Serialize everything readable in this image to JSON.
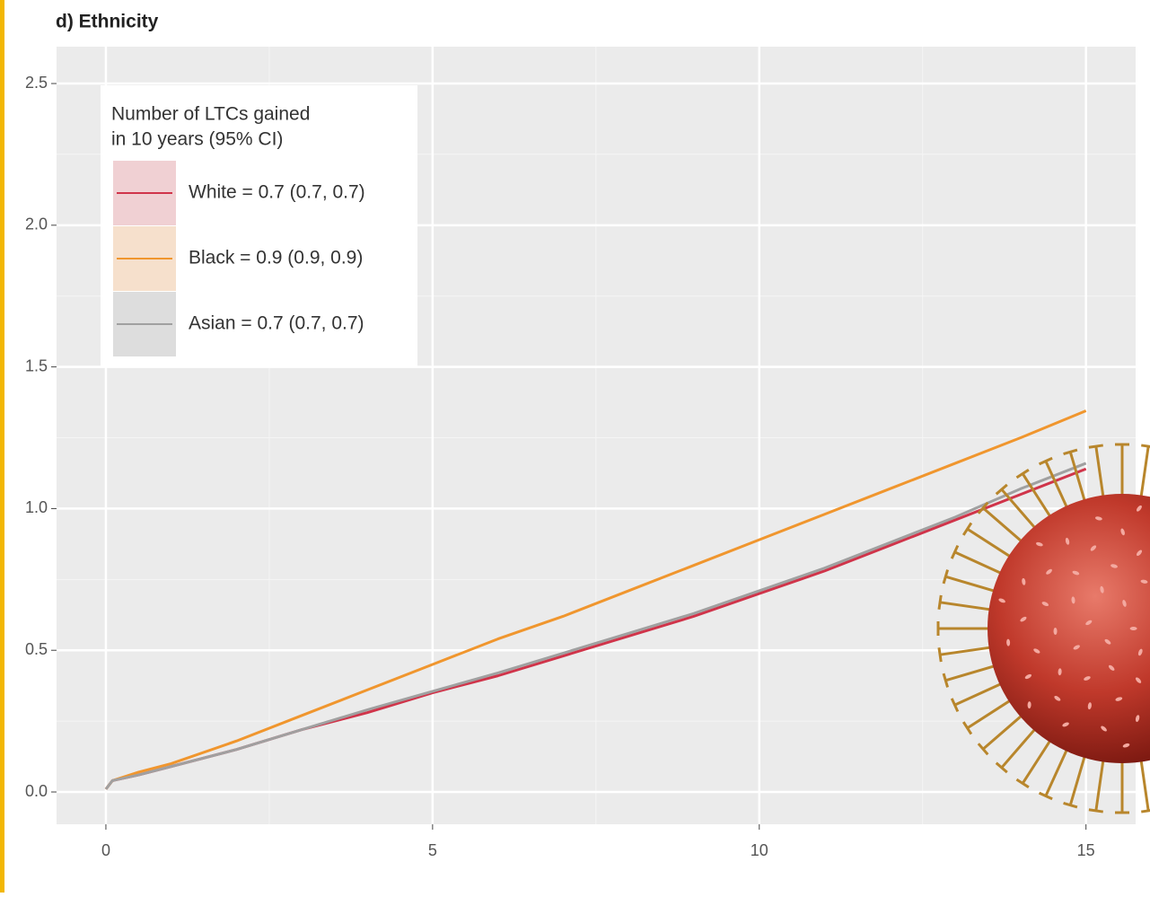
{
  "chart_data": {
    "type": "line",
    "title": "d) Ethnicity",
    "legend_title": [
      "Number of LTCs gained",
      "in 10 years (95% CI)"
    ],
    "legend": "top-left",
    "grid": true,
    "xlim": [
      -0.755,
      15.76
    ],
    "ylim": [
      -0.114,
      2.63
    ],
    "xticks": [
      0,
      5,
      10,
      15
    ],
    "yticks": [
      {
        "value": 0,
        "label": "0.0"
      },
      0.5,
      {
        "value": 1,
        "label": "1.0"
      },
      1.5,
      {
        "value": 2,
        "label": "2.0"
      },
      2.5
    ],
    "x": [
      0,
      0.1,
      0.5,
      1,
      2,
      3,
      4,
      5,
      6,
      7,
      8,
      9,
      10,
      11,
      12,
      13,
      14,
      15
    ],
    "series": [
      {
        "name": "White = 0.7 (0.7, 0.7)",
        "color": "#d0344a",
        "band_color": "#f0d0d3",
        "values": [
          0.01,
          0.04,
          0.06,
          0.09,
          0.15,
          0.22,
          0.28,
          0.35,
          0.41,
          0.48,
          0.55,
          0.62,
          0.7,
          0.78,
          0.87,
          0.96,
          1.05,
          1.14
        ]
      },
      {
        "name": "Black = 0.9 (0.9, 0.9)",
        "color": "#f0962e",
        "band_color": "#f6e0cc",
        "values": [
          0.01,
          0.04,
          0.07,
          0.1,
          0.18,
          0.27,
          0.36,
          0.45,
          0.54,
          0.62,
          0.71,
          0.8,
          0.89,
          0.98,
          1.07,
          1.16,
          1.25,
          1.345
        ]
      },
      {
        "name": "Asian = 0.7 (0.7, 0.7)",
        "color": "#a0a0a0",
        "band_color": "#dddddd",
        "values": [
          0.01,
          0.04,
          0.06,
          0.09,
          0.15,
          0.22,
          0.29,
          0.355,
          0.42,
          0.49,
          0.56,
          0.63,
          0.71,
          0.79,
          0.88,
          0.97,
          1.07,
          1.16
        ]
      }
    ]
  }
}
